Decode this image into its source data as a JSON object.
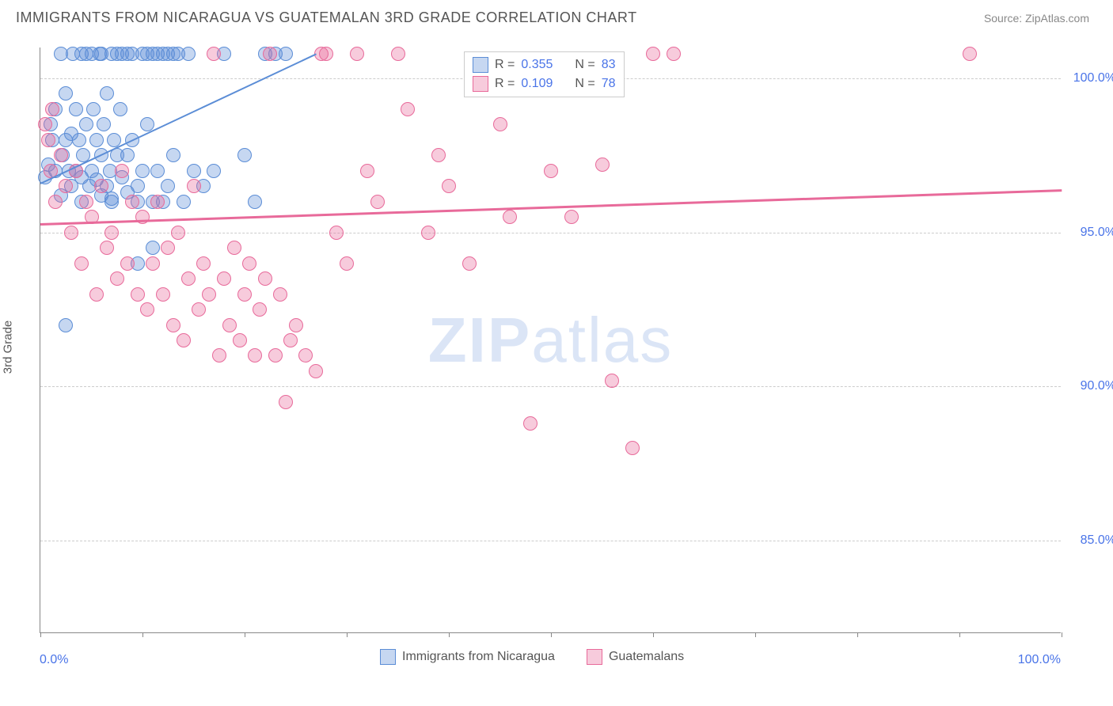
{
  "title": "IMMIGRANTS FROM NICARAGUA VS GUATEMALAN 3RD GRADE CORRELATION CHART",
  "source": "Source: ZipAtlas.com",
  "ylabel": "3rd Grade",
  "watermark": {
    "bold": "ZIP",
    "light": "atlas"
  },
  "chart": {
    "type": "scatter",
    "xlim": [
      0,
      100
    ],
    "ylim": [
      82,
      101
    ],
    "y_gridlines": [
      85,
      90,
      95,
      100
    ],
    "y_tick_labels": [
      "85.0%",
      "90.0%",
      "95.0%",
      "100.0%"
    ],
    "x_ticks": [
      0,
      10,
      20,
      30,
      40,
      50,
      60,
      70,
      80,
      90,
      100
    ],
    "x_tick_labels": {
      "0": "0.0%",
      "100": "100.0%"
    },
    "grid_color": "#cccccc",
    "axis_color": "#888888",
    "background_color": "#ffffff",
    "marker_radius": 9,
    "marker_border_width": 1.5,
    "marker_fill_opacity": 0.35,
    "series": [
      {
        "name": "Immigrants from Nicaragua",
        "color": "#5b8dd6",
        "fill": "rgba(91,141,214,0.35)",
        "R": "0.355",
        "N": "83",
        "trend": {
          "x1": 0,
          "y1": 96.6,
          "x2": 27,
          "y2": 100.8,
          "width": 2
        },
        "points": [
          [
            0.5,
            96.8
          ],
          [
            0.8,
            97.2
          ],
          [
            1.0,
            98.5
          ],
          [
            1.2,
            98.0
          ],
          [
            1.5,
            97.0
          ],
          [
            1.5,
            99.0
          ],
          [
            2.0,
            96.2
          ],
          [
            2.0,
            100.8
          ],
          [
            2.2,
            97.5
          ],
          [
            2.5,
            98.0
          ],
          [
            2.5,
            99.5
          ],
          [
            2.8,
            97.0
          ],
          [
            3.0,
            96.5
          ],
          [
            3.0,
            98.2
          ],
          [
            3.2,
            100.8
          ],
          [
            3.5,
            97.0
          ],
          [
            3.5,
            99.0
          ],
          [
            3.8,
            98.0
          ],
          [
            4.0,
            96.8
          ],
          [
            4.0,
            100.8
          ],
          [
            4.2,
            97.5
          ],
          [
            4.5,
            98.5
          ],
          [
            4.5,
            100.8
          ],
          [
            4.8,
            96.5
          ],
          [
            5.0,
            97.0
          ],
          [
            5.0,
            100.8
          ],
          [
            5.2,
            99.0
          ],
          [
            5.5,
            98.0
          ],
          [
            5.5,
            96.7
          ],
          [
            5.8,
            100.8
          ],
          [
            6.0,
            97.5
          ],
          [
            6.0,
            100.8
          ],
          [
            6.2,
            98.5
          ],
          [
            6.5,
            96.5
          ],
          [
            6.5,
            99.5
          ],
          [
            6.8,
            97.0
          ],
          [
            7.0,
            100.8
          ],
          [
            7.0,
            96.0
          ],
          [
            7.2,
            98.0
          ],
          [
            7.5,
            97.5
          ],
          [
            7.5,
            100.8
          ],
          [
            7.8,
            99.0
          ],
          [
            8.0,
            96.8
          ],
          [
            8.0,
            100.8
          ],
          [
            8.5,
            97.5
          ],
          [
            8.5,
            100.8
          ],
          [
            9.0,
            98.0
          ],
          [
            9.0,
            100.8
          ],
          [
            9.5,
            96.5
          ],
          [
            9.5,
            94.0
          ],
          [
            10.0,
            97.0
          ],
          [
            10.0,
            100.8
          ],
          [
            10.5,
            98.5
          ],
          [
            10.5,
            100.8
          ],
          [
            11.0,
            96.0
          ],
          [
            11.0,
            100.8
          ],
          [
            11.5,
            97.0
          ],
          [
            11.5,
            100.8
          ],
          [
            12.0,
            100.8
          ],
          [
            12.5,
            96.5
          ],
          [
            12.5,
            100.8
          ],
          [
            13.0,
            97.5
          ],
          [
            13.0,
            100.8
          ],
          [
            13.5,
            100.8
          ],
          [
            14.0,
            96.0
          ],
          [
            14.5,
            100.8
          ],
          [
            15.0,
            97.0
          ],
          [
            16.0,
            96.5
          ],
          [
            17.0,
            97.0
          ],
          [
            18.0,
            100.8
          ],
          [
            20.0,
            97.5
          ],
          [
            21.0,
            96.0
          ],
          [
            22.0,
            100.8
          ],
          [
            23.0,
            100.8
          ],
          [
            24.0,
            100.8
          ],
          [
            2.5,
            92.0
          ],
          [
            4.0,
            96.0
          ],
          [
            6.0,
            96.2
          ],
          [
            7.0,
            96.1
          ],
          [
            8.5,
            96.3
          ],
          [
            9.5,
            96.0
          ],
          [
            11.0,
            94.5
          ],
          [
            12.0,
            96.0
          ]
        ]
      },
      {
        "name": "Guatemalans",
        "color": "#e86a9a",
        "fill": "rgba(232,106,154,0.35)",
        "R": "0.109",
        "N": "78",
        "trend": {
          "x1": 0,
          "y1": 95.3,
          "x2": 100,
          "y2": 96.4,
          "width": 2.5
        },
        "points": [
          [
            0.5,
            98.5
          ],
          [
            1.0,
            97.0
          ],
          [
            1.5,
            96.0
          ],
          [
            2.0,
            97.5
          ],
          [
            2.5,
            96.5
          ],
          [
            3.0,
            95.0
          ],
          [
            3.5,
            97.0
          ],
          [
            4.0,
            94.0
          ],
          [
            4.5,
            96.0
          ],
          [
            5.0,
            95.5
          ],
          [
            5.5,
            93.0
          ],
          [
            6.0,
            96.5
          ],
          [
            6.5,
            94.5
          ],
          [
            7.0,
            95.0
          ],
          [
            7.5,
            93.5
          ],
          [
            8.0,
            97.0
          ],
          [
            8.5,
            94.0
          ],
          [
            9.0,
            96.0
          ],
          [
            9.5,
            93.0
          ],
          [
            10.0,
            95.5
          ],
          [
            10.5,
            92.5
          ],
          [
            11.0,
            94.0
          ],
          [
            11.5,
            96.0
          ],
          [
            12.0,
            93.0
          ],
          [
            12.5,
            94.5
          ],
          [
            13.0,
            92.0
          ],
          [
            13.5,
            95.0
          ],
          [
            14.0,
            91.5
          ],
          [
            14.5,
            93.5
          ],
          [
            15.0,
            96.5
          ],
          [
            15.5,
            92.5
          ],
          [
            16.0,
            94.0
          ],
          [
            16.5,
            93.0
          ],
          [
            17.0,
            100.8
          ],
          [
            17.5,
            91.0
          ],
          [
            18.0,
            93.5
          ],
          [
            18.5,
            92.0
          ],
          [
            19.0,
            94.5
          ],
          [
            19.5,
            91.5
          ],
          [
            20.0,
            93.0
          ],
          [
            20.5,
            94.0
          ],
          [
            21.0,
            91.0
          ],
          [
            21.5,
            92.5
          ],
          [
            22.0,
            93.5
          ],
          [
            22.5,
            100.8
          ],
          [
            23.0,
            91.0
          ],
          [
            23.5,
            93.0
          ],
          [
            24.0,
            89.5
          ],
          [
            24.5,
            91.5
          ],
          [
            25.0,
            92.0
          ],
          [
            26.0,
            91.0
          ],
          [
            27.0,
            90.5
          ],
          [
            27.5,
            100.8
          ],
          [
            28.0,
            100.8
          ],
          [
            29.0,
            95.0
          ],
          [
            30.0,
            94.0
          ],
          [
            31.0,
            100.8
          ],
          [
            32.0,
            97.0
          ],
          [
            33.0,
            96.0
          ],
          [
            35.0,
            100.8
          ],
          [
            36.0,
            99.0
          ],
          [
            38.0,
            95.0
          ],
          [
            39.0,
            97.5
          ],
          [
            40.0,
            96.5
          ],
          [
            42.0,
            94.0
          ],
          [
            45.0,
            98.5
          ],
          [
            46.0,
            95.5
          ],
          [
            48.0,
            88.8
          ],
          [
            50.0,
            97.0
          ],
          [
            52.0,
            95.5
          ],
          [
            55.0,
            97.2
          ],
          [
            56.0,
            90.2
          ],
          [
            58.0,
            88.0
          ],
          [
            60.0,
            100.8
          ],
          [
            62.0,
            100.8
          ],
          [
            91.0,
            100.8
          ],
          [
            0.8,
            98.0
          ],
          [
            1.2,
            99.0
          ]
        ]
      }
    ]
  },
  "legend_top": {
    "rows": [
      {
        "swatch_fill": "rgba(91,141,214,0.35)",
        "swatch_border": "#5b8dd6",
        "R_label": "R =",
        "R": "0.355",
        "N_label": "N =",
        "N": "83"
      },
      {
        "swatch_fill": "rgba(232,106,154,0.35)",
        "swatch_border": "#e86a9a",
        "R_label": "R =",
        "R": "0.109",
        "N_label": "N =",
        "N": "78"
      }
    ]
  },
  "legend_bottom": [
    {
      "swatch_fill": "rgba(91,141,214,0.35)",
      "swatch_border": "#5b8dd6",
      "label": "Immigrants from Nicaragua"
    },
    {
      "swatch_fill": "rgba(232,106,154,0.35)",
      "swatch_border": "#e86a9a",
      "label": "Guatemalans"
    }
  ]
}
